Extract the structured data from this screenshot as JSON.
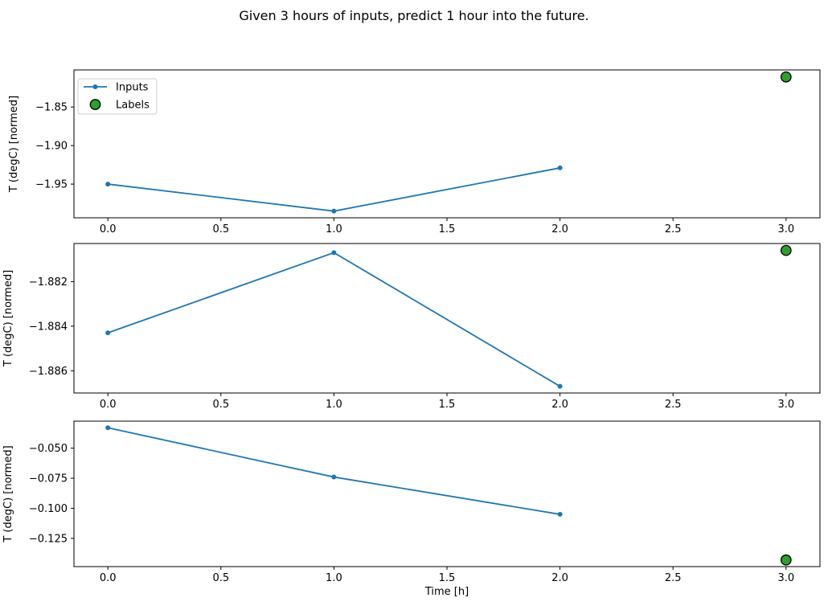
{
  "figure": {
    "title": "Given 3 hours of inputs, predict 1 hour into the future.",
    "background_color": "#ffffff"
  },
  "colors": {
    "inputs_line": "#1f77b4",
    "labels_fill": "#2ca02c",
    "labels_edge": "#000000",
    "spine": "#000000",
    "tick_text": "#000000",
    "legend_border": "#cccccc",
    "legend_background": "#ffffff"
  },
  "legend": {
    "items": [
      {
        "label": "Inputs",
        "marker": "line-with-dot",
        "color": "#1f77b4"
      },
      {
        "label": "Labels",
        "marker": "circle",
        "color": "#2ca02c"
      }
    ]
  },
  "chart_data": [
    {
      "type": "line",
      "title": "",
      "xlabel": "",
      "ylabel": "T (degC) [normed]",
      "xlim": [
        -0.15,
        3.15
      ],
      "ylim": [
        -1.9937,
        -1.8019
      ],
      "xticks": [
        0.0,
        0.5,
        1.0,
        1.5,
        2.0,
        2.5,
        3.0
      ],
      "xtick_labels": [
        "0.0",
        "0.5",
        "1.0",
        "1.5",
        "2.0",
        "2.5",
        "3.0"
      ],
      "yticks": [
        -1.85,
        -1.9,
        -1.95
      ],
      "ytick_labels": [
        "−1.85",
        "−1.90",
        "−1.95"
      ],
      "legend_visible": true,
      "grid": false,
      "series": [
        {
          "name": "Inputs",
          "style": "line+marker",
          "x": [
            0,
            1,
            2
          ],
          "y": [
            -1.95,
            -1.985,
            -1.929
          ]
        },
        {
          "name": "Labels",
          "style": "scatter",
          "x": [
            3
          ],
          "y": [
            -1.811
          ]
        }
      ]
    },
    {
      "type": "line",
      "title": "",
      "xlabel": "",
      "ylabel": "T (degC) [normed]",
      "xlim": [
        -0.15,
        3.15
      ],
      "ylim": [
        -1.887,
        -1.88029
      ],
      "xticks": [
        0.0,
        0.5,
        1.0,
        1.5,
        2.0,
        2.5,
        3.0
      ],
      "xtick_labels": [
        "0.0",
        "0.5",
        "1.0",
        "1.5",
        "2.0",
        "2.5",
        "3.0"
      ],
      "yticks": [
        -1.882,
        -1.884,
        -1.886
      ],
      "ytick_labels": [
        "−1.882",
        "−1.884",
        "−1.886"
      ],
      "legend_visible": false,
      "grid": false,
      "series": [
        {
          "name": "Inputs",
          "style": "line+marker",
          "x": [
            0,
            1,
            2
          ],
          "y": [
            -1.8843,
            -1.8807,
            -1.8867
          ]
        },
        {
          "name": "Labels",
          "style": "scatter",
          "x": [
            3
          ],
          "y": [
            -1.8806
          ]
        }
      ]
    },
    {
      "type": "line",
      "title": "",
      "xlabel": "Time [h]",
      "ylabel": "T (degC) [normed]",
      "xlim": [
        -0.15,
        3.15
      ],
      "ylim": [
        -0.1485,
        -0.0275
      ],
      "xticks": [
        0.0,
        0.5,
        1.0,
        1.5,
        2.0,
        2.5,
        3.0
      ],
      "xtick_labels": [
        "0.0",
        "0.5",
        "1.0",
        "1.5",
        "2.0",
        "2.5",
        "3.0"
      ],
      "yticks": [
        -0.05,
        -0.075,
        -0.1,
        -0.125
      ],
      "ytick_labels": [
        "−0.050",
        "−0.075",
        "−0.100",
        "−0.125"
      ],
      "legend_visible": false,
      "grid": false,
      "series": [
        {
          "name": "Inputs",
          "style": "line+marker",
          "x": [
            0,
            1,
            2
          ],
          "y": [
            -0.033,
            -0.074,
            -0.105
          ]
        },
        {
          "name": "Labels",
          "style": "scatter",
          "x": [
            3
          ],
          "y": [
            -0.143
          ]
        }
      ]
    }
  ]
}
